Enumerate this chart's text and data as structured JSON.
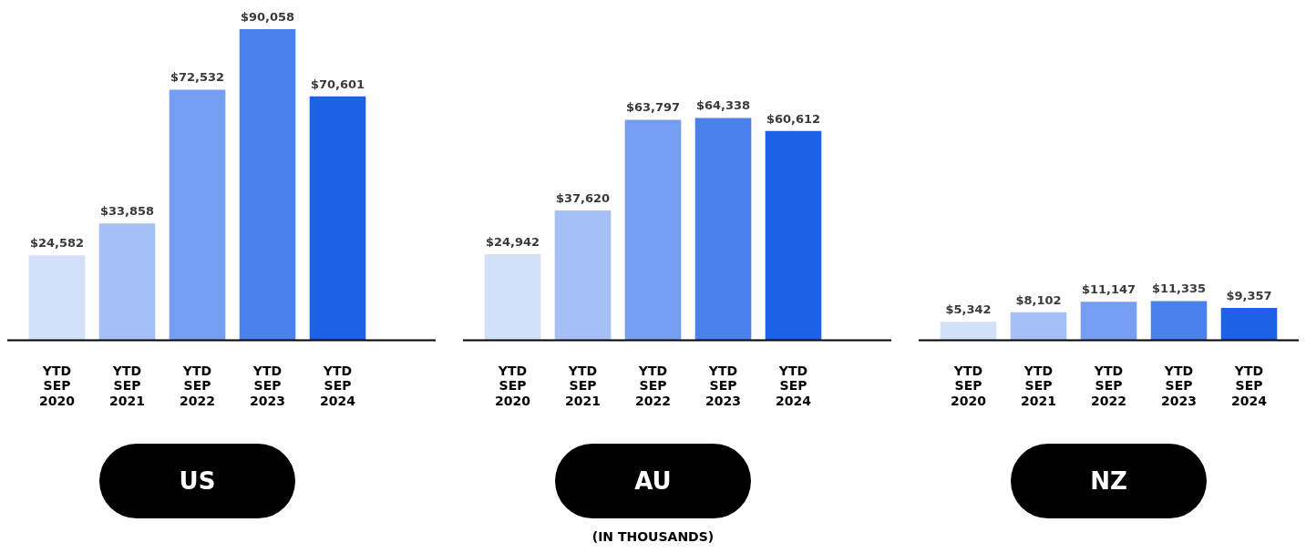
{
  "chart_data": [
    {
      "type": "bar",
      "categories": [
        "YTD SEP 2020",
        "YTD SEP 2021",
        "YTD SEP 2022",
        "YTD SEP 2023",
        "YTD SEP 2024"
      ],
      "values": [
        24582,
        33858,
        72532,
        90058,
        70601
      ],
      "colors": [
        "#d3e0f9",
        "#a5c0f6",
        "#759ef2",
        "#4a81ec",
        "#1c62e9"
      ],
      "value_labels": [
        "$24,582",
        "$33,858",
        "$72,532",
        "$90,058",
        "$70,601"
      ],
      "xlabel": "US"
    },
    {
      "type": "bar",
      "categories": [
        "YTD SEP 2020",
        "YTD SEP 2021",
        "YTD SEP 2022",
        "YTD SEP 2023",
        "YTD SEP 2024"
      ],
      "values": [
        24942,
        37620,
        63797,
        64338,
        60612
      ],
      "colors": [
        "#d3e0f9",
        "#a5c0f6",
        "#759ef2",
        "#4a81ec",
        "#1c62e9"
      ],
      "value_labels": [
        "$24,942",
        "$37,620",
        "$63,797",
        "$64,338",
        "$60,612"
      ],
      "xlabel": "AU",
      "annotations": [
        "(IN THOUSANDS)"
      ]
    },
    {
      "type": "bar",
      "categories": [
        "YTD SEP 2020",
        "YTD SEP 2021",
        "YTD SEP 2022",
        "YTD SEP 2023",
        "YTD SEP 2024"
      ],
      "values": [
        5342,
        8102,
        11147,
        11335,
        9357
      ],
      "colors": [
        "#d3e0f9",
        "#a5c0f6",
        "#759ef2",
        "#4a81ec",
        "#1c62e9"
      ],
      "value_labels": [
        "$5,342",
        "$8,102",
        "$11,147",
        "$11,335",
        "$9,357"
      ],
      "xlabel": "NZ"
    }
  ]
}
